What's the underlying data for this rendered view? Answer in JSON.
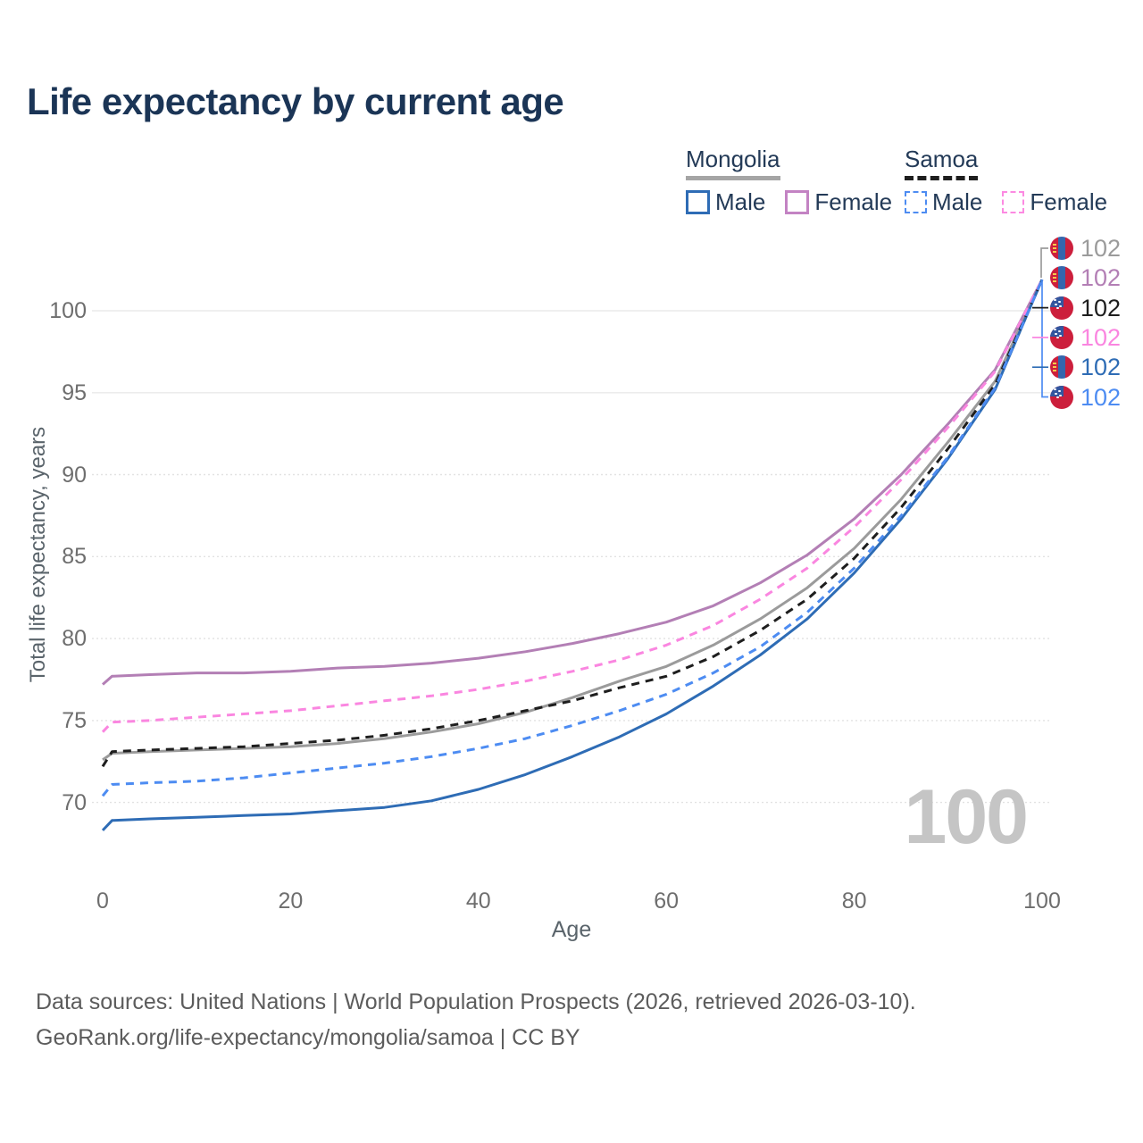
{
  "title": "Life expectancy by current age",
  "legend": {
    "groups": [
      {
        "country": "Mongolia",
        "line_style": "solid",
        "underline_color": "#a5a5a5",
        "items": [
          {
            "label": "Male",
            "color": "#2e6cb5"
          },
          {
            "label": "Female",
            "color": "#c383c3"
          }
        ]
      },
      {
        "country": "Samoa",
        "line_style": "dashed",
        "underline_color": "#1e1e1e",
        "items": [
          {
            "label": "Male",
            "color": "#4d8cf2"
          },
          {
            "label": "Female",
            "color": "#fc8ae2"
          }
        ]
      }
    ]
  },
  "age_marker": "100",
  "footer": {
    "line1": "Data sources: United Nations | World Population Prospects (2026, retrieved 2026-03-10).",
    "line2": "GeoRank.org/life-expectancy/mongolia/samoa | CC BY"
  },
  "chart_data": {
    "type": "line",
    "title": "Life expectancy by current age",
    "xlabel": "Age",
    "ylabel": "Total life expectancy, years",
    "xlim": [
      0,
      100
    ],
    "ylim": [
      67,
      103
    ],
    "x_ticks": [
      0,
      20,
      40,
      60,
      80,
      100
    ],
    "y_ticks": [
      70,
      75,
      80,
      85,
      90,
      95,
      100
    ],
    "grid": "horizontal",
    "legend_position": "top-right",
    "current_age_indicator": 100,
    "ages": [
      0,
      1,
      5,
      10,
      15,
      20,
      25,
      30,
      35,
      40,
      45,
      50,
      55,
      60,
      65,
      70,
      75,
      80,
      85,
      90,
      95,
      100
    ],
    "series": [
      {
        "id": "mongolia-both",
        "name": "Mongolia — Both sexes",
        "country": "Mongolia",
        "sex": "both",
        "line": "solid",
        "color": "#9b9b9b",
        "values": [
          72.6,
          73.0,
          73.1,
          73.2,
          73.3,
          73.4,
          73.6,
          73.9,
          74.3,
          74.8,
          75.5,
          76.4,
          77.4,
          78.3,
          79.6,
          81.2,
          83.1,
          85.5,
          88.5,
          92.0,
          95.7,
          101.9
        ]
      },
      {
        "id": "mongolia-female",
        "name": "Mongolia — Female",
        "country": "Mongolia",
        "sex": "female",
        "line": "solid",
        "color": "#b37fb5",
        "values": [
          77.2,
          77.7,
          77.8,
          77.9,
          77.9,
          78.0,
          78.2,
          78.3,
          78.5,
          78.8,
          79.2,
          79.7,
          80.3,
          81.0,
          82.0,
          83.4,
          85.1,
          87.3,
          90.0,
          93.1,
          96.4,
          101.9
        ]
      },
      {
        "id": "mongolia-male",
        "name": "Mongolia — Male",
        "country": "Mongolia",
        "sex": "male",
        "line": "solid",
        "color": "#2e6cb5",
        "values": [
          68.3,
          68.9,
          69.0,
          69.1,
          69.2,
          69.3,
          69.5,
          69.7,
          70.1,
          70.8,
          71.7,
          72.8,
          74.0,
          75.4,
          77.1,
          79.0,
          81.2,
          84.0,
          87.3,
          91.0,
          95.2,
          101.9
        ]
      },
      {
        "id": "samoa-both",
        "name": "Samoa — Both sexes",
        "country": "Samoa",
        "sex": "both",
        "line": "dashed",
        "color": "#1e1e1e",
        "values": [
          72.2,
          73.1,
          73.2,
          73.3,
          73.4,
          73.6,
          73.8,
          74.1,
          74.5,
          75.0,
          75.6,
          76.2,
          77.0,
          77.7,
          78.9,
          80.5,
          82.4,
          84.9,
          88.0,
          91.6,
          95.5,
          101.9
        ]
      },
      {
        "id": "samoa-female",
        "name": "Samoa — Female",
        "country": "Samoa",
        "sex": "female",
        "line": "dashed",
        "color": "#fa86e0",
        "values": [
          74.3,
          74.9,
          75.0,
          75.2,
          75.4,
          75.6,
          75.9,
          76.2,
          76.5,
          76.9,
          77.4,
          78.0,
          78.7,
          79.6,
          80.8,
          82.4,
          84.3,
          86.8,
          89.7,
          92.9,
          96.3,
          101.9
        ]
      },
      {
        "id": "samoa-male",
        "name": "Samoa — Male",
        "country": "Samoa",
        "sex": "male",
        "line": "dashed",
        "color": "#4d8cf2",
        "values": [
          70.4,
          71.1,
          71.2,
          71.3,
          71.5,
          71.8,
          72.1,
          72.4,
          72.8,
          73.3,
          73.9,
          74.7,
          75.6,
          76.6,
          77.9,
          79.5,
          81.6,
          84.3,
          87.5,
          91.1,
          95.3,
          101.9
        ]
      }
    ],
    "end_labels": [
      {
        "series": "mongolia-both",
        "flag": "mongolia",
        "text": "102",
        "color": "#9b9b9b"
      },
      {
        "series": "mongolia-female",
        "flag": "mongolia",
        "text": "102",
        "color": "#b37fb5"
      },
      {
        "series": "samoa-both",
        "flag": "samoa",
        "text": "102",
        "color": "#1e1e1e"
      },
      {
        "series": "samoa-female",
        "flag": "samoa",
        "text": "102",
        "color": "#fa86e0"
      },
      {
        "series": "mongolia-male",
        "flag": "mongolia",
        "text": "102",
        "color": "#2e6cb5"
      },
      {
        "series": "samoa-male",
        "flag": "samoa",
        "text": "102",
        "color": "#4d8cf2"
      }
    ]
  }
}
